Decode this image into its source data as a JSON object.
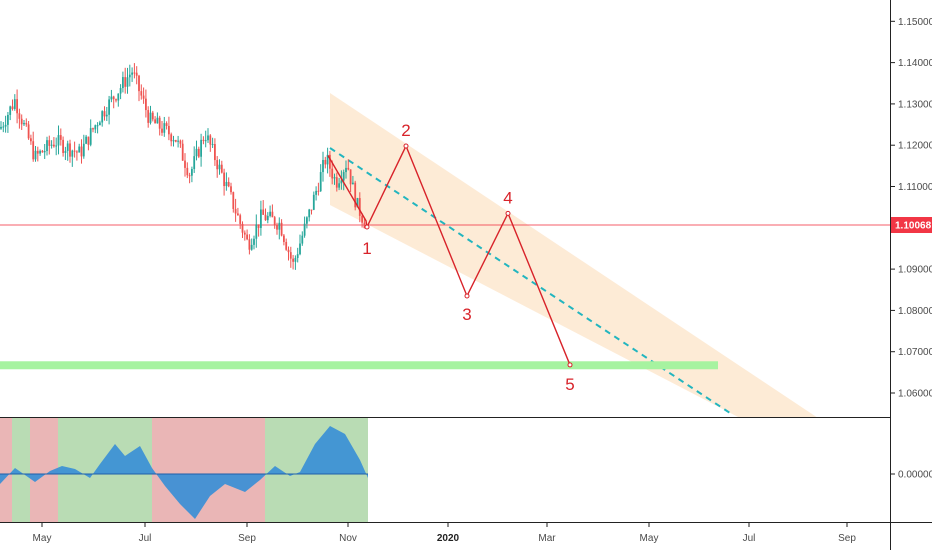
{
  "chart_data": {
    "type": "line",
    "price_axis": {
      "ticks": [
        "1.15000",
        "1.14000",
        "1.13000",
        "1.12000",
        "1.11000",
        "1.10000",
        "1.09000",
        "1.08000",
        "1.07000",
        "1.06000"
      ],
      "values": [
        1.15,
        1.14,
        1.13,
        1.12,
        1.11,
        1.1,
        1.09,
        1.08,
        1.07,
        1.06
      ],
      "range": [
        1.0535,
        1.1555
      ]
    },
    "current_price": {
      "label": "1.10068",
      "value": 1.10068,
      "color": "#f23645"
    },
    "oscillator_axis": {
      "ticks": [
        "0.00000"
      ]
    },
    "time_axis": {
      "labels": [
        "May",
        "Jul",
        "Sep",
        "Nov",
        "2020",
        "Mar",
        "May",
        "Jul",
        "Sep"
      ],
      "bold": [
        false,
        false,
        false,
        false,
        true,
        false,
        false,
        false,
        false
      ]
    },
    "support_zone": {
      "from": 1.0665,
      "to": 1.0672,
      "color": "#a6f3a0"
    },
    "wave_projection": {
      "points": [
        {
          "label": "1",
          "value": 1.1002
        },
        {
          "label": "2",
          "value": 1.1198
        },
        {
          "label": "3",
          "value": 1.0835
        },
        {
          "label": "4",
          "value": 1.1035
        },
        {
          "label": "5",
          "value": 1.0668
        }
      ],
      "color": "#d8232a"
    },
    "channel": {
      "color": "#fde7cf",
      "midline_color": "#22b5bf"
    },
    "colors": {
      "bull": "#26a69a",
      "bear": "#ef5350",
      "osc_fill": "#3a8fd6",
      "osc_bg_red": "#eab6b6",
      "osc_bg_green": "#b9dcb4"
    }
  }
}
